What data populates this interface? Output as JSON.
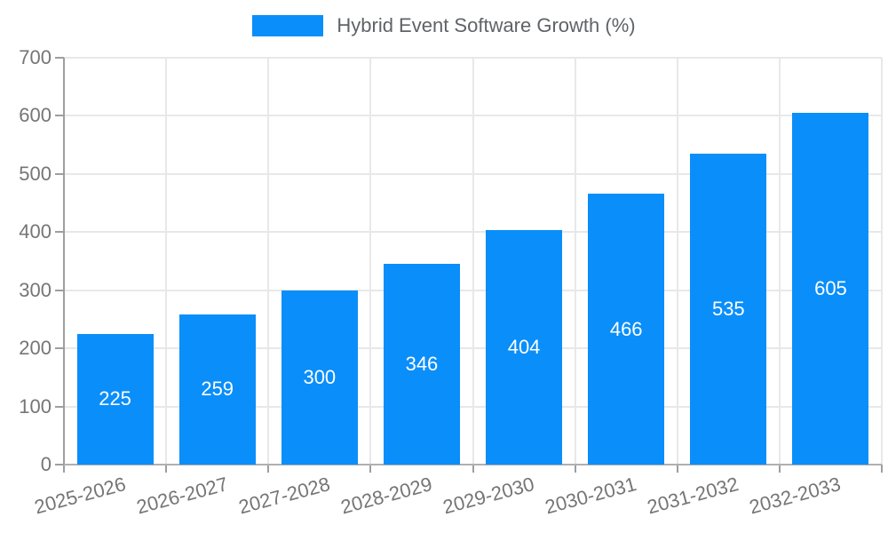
{
  "chart_data": {
    "type": "bar",
    "title": "Hybrid Event Software Growth (%)",
    "categories": [
      "2025-2026",
      "2026-2027",
      "2027-2028",
      "2028-2029",
      "2029-2030",
      "2030-2031",
      "2031-2032",
      "2032-2033"
    ],
    "values": [
      225,
      259,
      300,
      346,
      404,
      466,
      535,
      605
    ],
    "value_labels": [
      "225",
      "259",
      "300",
      "346",
      "404",
      "466",
      "535",
      "605"
    ],
    "xlabel": "",
    "ylabel": "",
    "ylim": [
      0,
      700
    ],
    "yticks": [
      0,
      100,
      200,
      300,
      400,
      500,
      600,
      700
    ],
    "ytick_labels": [
      "0",
      "100",
      "200",
      "300",
      "400",
      "500",
      "600",
      "700"
    ],
    "grid": true,
    "legend_position": "top",
    "value_label_position": "inside-center"
  },
  "legend": {
    "label": "Hybrid Event Software Growth (%)"
  },
  "colors": {
    "bar": "#0a8ef9",
    "value_label": "#ffffff",
    "legend_text": "#5f6368",
    "axis_text": "#757575",
    "grid_line": "#e8e8e8",
    "axis_line": "#9e9e9e",
    "background": "#ffffff"
  }
}
